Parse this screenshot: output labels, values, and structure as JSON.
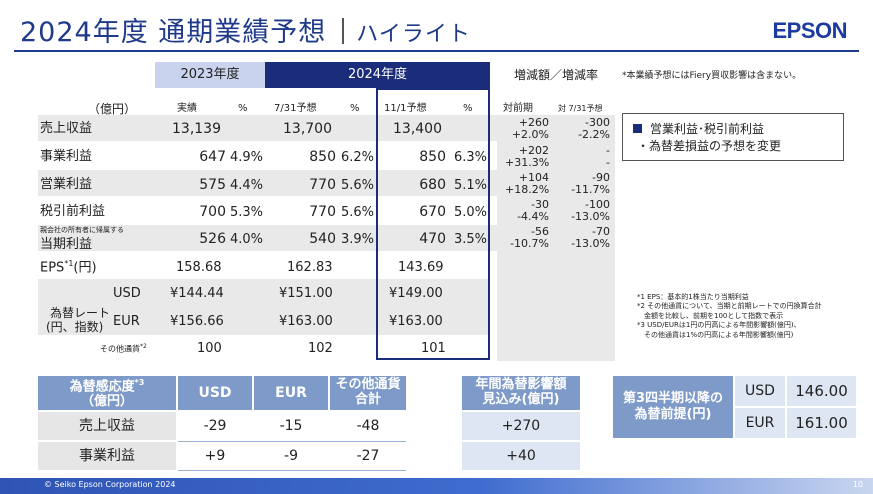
{
  "header": {
    "title": "2024年度 通期業績予想",
    "subtitle": "ハイライト",
    "logo": "EPSON"
  },
  "main_table": {
    "col_2023": "2023年度",
    "col_2024": "2024年度",
    "col_diff": "増減額／増減率",
    "unit": "（億円）",
    "sub_actual": "実績",
    "sub_pct": "%",
    "sub_jul": "7/31予想",
    "sub_nov": "11/1予想",
    "sub_yoy": "対前期",
    "sub_vs_jul": "対 7/31予想",
    "rows": [
      {
        "label": "売上収益",
        "a": "13,139",
        "ap": "",
        "j": "13,700",
        "jp": "",
        "n": "13,400",
        "np": "",
        "d1": "+260",
        "d1p": "+2.0%",
        "d2": "-300",
        "d2p": "-2.2%"
      },
      {
        "label": "事業利益",
        "a": "647",
        "ap": "4.9%",
        "j": "850",
        "jp": "6.2%",
        "n": "850",
        "np": "6.3%",
        "d1": "+202",
        "d1p": "+31.3%",
        "d2": "-",
        "d2p": "-"
      },
      {
        "label": "営業利益",
        "a": "575",
        "ap": "4.4%",
        "j": "770",
        "jp": "5.6%",
        "n": "680",
        "np": "5.1%",
        "d1": "+104",
        "d1p": "+18.2%",
        "d2": "-90",
        "d2p": "-11.7%"
      },
      {
        "label": "税引前利益",
        "a": "700",
        "ap": "5.3%",
        "j": "770",
        "jp": "5.6%",
        "n": "670",
        "np": "5.0%",
        "d1": "-30",
        "d1p": "-4.4%",
        "d2": "-100",
        "d2p": "-13.0%"
      },
      {
        "label_small": "親会社の所有者に帰属する",
        "label": "当期利益",
        "a": "526",
        "ap": "4.0%",
        "j": "540",
        "jp": "3.9%",
        "n": "470",
        "np": "3.5%",
        "d1": "-56",
        "d1p": "-10.7%",
        "d2": "-70",
        "d2p": "-13.0%"
      }
    ],
    "eps": {
      "label": "EPS",
      "sup": "*1",
      "unit": "(円)",
      "a": "158.68",
      "j": "162.83",
      "n": "143.69"
    },
    "fx": {
      "label_line1": "為替レート",
      "label_line2": "(円、指数)",
      "usd_label": "USD",
      "usd_a": "¥144.44",
      "usd_j": "¥151.00",
      "usd_n": "¥149.00",
      "eur_label": "EUR",
      "eur_a": "¥156.66",
      "eur_j": "¥163.00",
      "eur_n": "¥163.00",
      "other_label": "その他通貨",
      "other_sup": "*2",
      "other_a": "100",
      "other_j": "102",
      "other_n": "101"
    }
  },
  "side": {
    "note_top": "*本業績予想にはFiery買収影響は含まない。",
    "key_title": "営業利益･税引前利益",
    "key_item": "・為替差損益の予想を変更",
    "notes": [
      "*1 EPS：基本的1株当たり当期利益",
      "*2 その他通貨について、当期と前期レートでの円換算合計",
      "　金額を比較し、前期を100として指数で表示",
      "*3 USD/EURは1円の円高による年間影響額(億円)、",
      "　その他通貨は1%の円高による年間影響額(億円)"
    ]
  },
  "sensitivity": {
    "head_line1": "為替感応度",
    "head_sup": "*3",
    "head_line2": "（億円）",
    "col_usd": "USD",
    "col_eur": "EUR",
    "col_other_1": "その他通貨",
    "col_other_2": "合計",
    "col_annual_1": "年間為替影響額",
    "col_annual_2": "見込み(億円)",
    "rows": [
      {
        "label": "売上収益",
        "usd": "-29",
        "eur": "-15",
        "other": "-48",
        "annual": "+270"
      },
      {
        "label": "事業利益",
        "usd": "+9",
        "eur": "-9",
        "other": "-27",
        "annual": "+40"
      }
    ]
  },
  "premise": {
    "label_1": "第3四半期以降の",
    "label_2": "為替前提(円)",
    "usd_label": "USD",
    "usd": "146.00",
    "eur_label": "EUR",
    "eur": "161.00"
  },
  "footer": {
    "copyright": "© Seiko Epson Corporation 2024",
    "page": "10"
  },
  "colors": {
    "navy": "#1b2d7a",
    "light_blue": "#c9d3ee",
    "mid_blue": "#7d9ac9"
  }
}
